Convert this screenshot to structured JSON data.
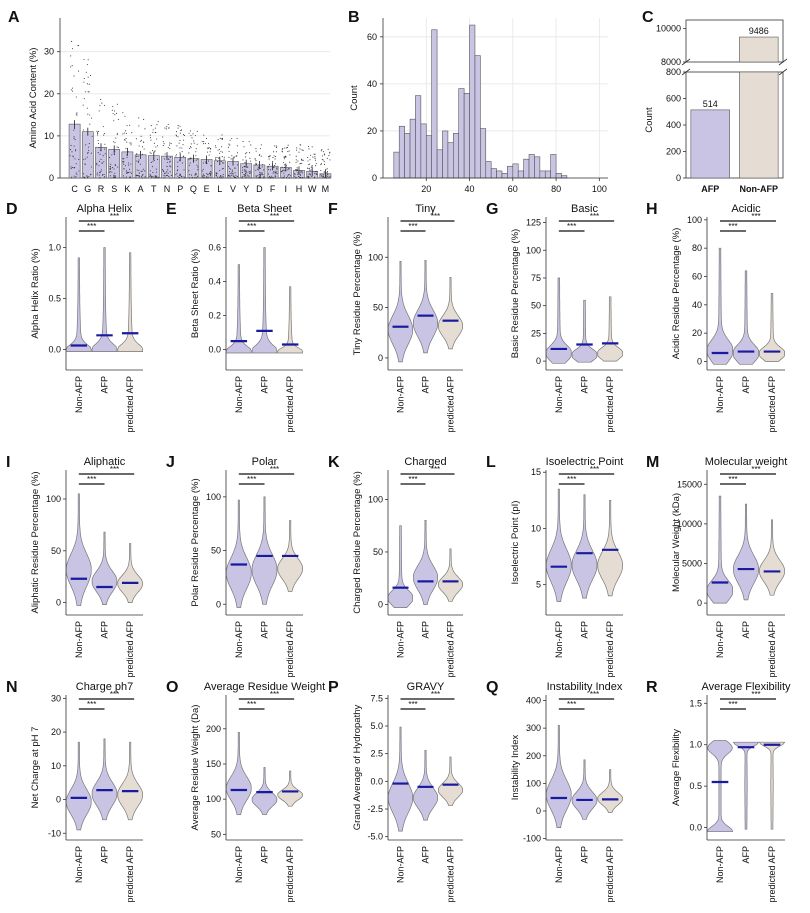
{
  "colors": {
    "afp": "#c9c4e4",
    "nonafp": "#e5ddd3",
    "mean": "#1a1aa0",
    "bar": "#c9c4e4",
    "outline": "#777777"
  },
  "chart_data": [
    {
      "id": "A",
      "panel_label": "A",
      "type": "bar",
      "title": "",
      "xlabel": "",
      "ylabel": "Amino Acid Content (%)",
      "ylim": [
        0,
        38
      ],
      "yticks": [
        0,
        10,
        20,
        30
      ],
      "categories": [
        "C",
        "G",
        "R",
        "S",
        "K",
        "A",
        "T",
        "N",
        "P",
        "Q",
        "E",
        "L",
        "V",
        "Y",
        "D",
        "F",
        "I",
        "H",
        "W",
        "M"
      ],
      "values": [
        12.8,
        11.0,
        7.3,
        6.8,
        6.2,
        5.5,
        5.3,
        5.2,
        4.9,
        4.6,
        4.4,
        4.1,
        3.9,
        3.4,
        3.1,
        2.8,
        2.5,
        1.8,
        1.6,
        1.0
      ],
      "grid": true
    },
    {
      "id": "B",
      "panel_label": "B",
      "type": "bar",
      "title": "",
      "xlabel": "",
      "ylabel": "Count",
      "xlim": [
        0,
        104
      ],
      "ylim": [
        0,
        68
      ],
      "xticks": [
        20,
        40,
        60,
        80,
        100
      ],
      "yticks": [
        0,
        20,
        40,
        60
      ],
      "bin_start": 5,
      "bin_width": 2.5,
      "values": [
        11,
        22,
        19,
        25,
        35,
        23,
        18,
        63,
        12,
        20,
        15,
        19,
        38,
        36,
        65,
        52,
        21,
        7,
        4,
        3,
        2,
        5,
        6,
        3,
        8,
        10,
        9,
        3,
        3,
        10,
        2,
        1
      ],
      "grid": true
    },
    {
      "id": "C",
      "panel_label": "C",
      "type": "bar",
      "title": "",
      "xlabel": "",
      "ylabel": "Count",
      "broken_axis": true,
      "ylim_top": [
        8000,
        10500
      ],
      "ylim_bottom": [
        0,
        800
      ],
      "yticks_top": [
        8000,
        10000
      ],
      "yticks_bottom": [
        0,
        200,
        400,
        600,
        800
      ],
      "categories": [
        "AFP",
        "Non-AFP"
      ],
      "values": [
        514,
        9486
      ],
      "data_labels": [
        "514",
        "9486"
      ]
    }
  ],
  "violin_panels": [
    {
      "id": "D",
      "panel_label": "D",
      "title": "Alpha Helix",
      "ylabel": "Alpha Helix Ratio (%)",
      "ylim": [
        -0.2,
        1.3
      ],
      "yticks": [
        0.0,
        0.5,
        1.0
      ],
      "tick_labels": [
        "0.0",
        "0.5",
        "1.0"
      ],
      "series": [
        {
          "name": "Non-AFP",
          "mean": 0.04,
          "min": -0.02,
          "max": 0.9,
          "shape": "bottom"
        },
        {
          "name": "AFP",
          "mean": 0.14,
          "min": -0.02,
          "max": 1.0,
          "shape": "bottom"
        },
        {
          "name": "predicted AFP",
          "mean": 0.16,
          "min": -0.02,
          "max": 0.95,
          "shape": "bottom"
        }
      ],
      "significance": [
        "***",
        "***"
      ]
    },
    {
      "id": "E",
      "panel_label": "E",
      "title": "Beta Sheet",
      "ylabel": "Beta Sheet Ratio (%)",
      "ylim": [
        -0.12,
        0.78
      ],
      "yticks": [
        0.0,
        0.2,
        0.4,
        0.6
      ],
      "tick_labels": [
        "0.0",
        "0.2",
        "0.4",
        "0.6"
      ],
      "series": [
        {
          "name": "Non-AFP",
          "mean": 0.05,
          "min": -0.02,
          "max": 0.5,
          "shape": "bottom"
        },
        {
          "name": "AFP",
          "mean": 0.11,
          "min": -0.02,
          "max": 0.6,
          "shape": "bottom"
        },
        {
          "name": "predicted AFP",
          "mean": 0.03,
          "min": -0.02,
          "max": 0.37,
          "shape": "bottom"
        }
      ],
      "significance": [
        "***",
        "***"
      ]
    },
    {
      "id": "F",
      "panel_label": "F",
      "title": "Tiny",
      "ylabel": "Tiny Residue Percentage (%)",
      "ylim": [
        -12,
        140
      ],
      "yticks": [
        0,
        50,
        100
      ],
      "tick_labels": [
        "0",
        "50",
        "100"
      ],
      "series": [
        {
          "name": "Non-AFP",
          "mean": 31,
          "min": -4,
          "max": 96,
          "shape": "mid"
        },
        {
          "name": "AFP",
          "mean": 42,
          "min": 5,
          "max": 97,
          "shape": "mid"
        },
        {
          "name": "predicted AFP",
          "mean": 37,
          "min": 9,
          "max": 80,
          "shape": "mid"
        }
      ],
      "significance": [
        "***",
        "***"
      ]
    },
    {
      "id": "G",
      "panel_label": "G",
      "title": "Basic",
      "ylabel": "Basic Residue Percentage (%)",
      "ylim": [
        -8,
        130
      ],
      "yticks": [
        0,
        25,
        50,
        75,
        100,
        125
      ],
      "tick_labels": [
        "0",
        "25",
        "50",
        "75",
        "100",
        "125"
      ],
      "series": [
        {
          "name": "Non-AFP",
          "mean": 11,
          "min": -2,
          "max": 75,
          "shape": "low"
        },
        {
          "name": "AFP",
          "mean": 15,
          "min": -1,
          "max": 55,
          "shape": "low"
        },
        {
          "name": "predicted AFP",
          "mean": 16,
          "min": 0,
          "max": 58,
          "shape": "low"
        }
      ],
      "significance": [
        "***",
        "***"
      ]
    },
    {
      "id": "H",
      "panel_label": "H",
      "title": "Acidic",
      "ylabel": "Acidic Residue Percentage (%)",
      "ylim": [
        -6,
        102
      ],
      "yticks": [
        0,
        20,
        40,
        60,
        80,
        100
      ],
      "tick_labels": [
        "0",
        "20",
        "40",
        "60",
        "80",
        "100"
      ],
      "series": [
        {
          "name": "Non-AFP",
          "mean": 6,
          "min": -2,
          "max": 80,
          "shape": "low"
        },
        {
          "name": "AFP",
          "mean": 7,
          "min": -2,
          "max": 64,
          "shape": "low"
        },
        {
          "name": "predicted AFP",
          "mean": 7,
          "min": 0,
          "max": 48,
          "shape": "low"
        }
      ],
      "significance": [
        "***",
        "***"
      ]
    },
    {
      "id": "I",
      "panel_label": "I",
      "title": "Aliphatic",
      "ylabel": "Aliphatic Residue Percentage (%)",
      "ylim": [
        -12,
        128
      ],
      "yticks": [
        0,
        50,
        100
      ],
      "tick_labels": [
        "0",
        "50",
        "100"
      ],
      "series": [
        {
          "name": "Non-AFP",
          "mean": 23,
          "min": -3,
          "max": 105,
          "shape": "mid"
        },
        {
          "name": "AFP",
          "mean": 15,
          "min": -2,
          "max": 68,
          "shape": "mid"
        },
        {
          "name": "predicted AFP",
          "mean": 19,
          "min": 0,
          "max": 57,
          "shape": "mid"
        }
      ],
      "significance": [
        "***",
        "***"
      ]
    },
    {
      "id": "J",
      "panel_label": "J",
      "title": "Polar",
      "ylabel": "Polar Residue Percentage (%)",
      "ylim": [
        -10,
        125
      ],
      "yticks": [
        0,
        50,
        100
      ],
      "tick_labels": [
        "0",
        "50",
        "100"
      ],
      "series": [
        {
          "name": "Non-AFP",
          "mean": 37,
          "min": -3,
          "max": 97,
          "shape": "mid"
        },
        {
          "name": "AFP",
          "mean": 45,
          "min": 0,
          "max": 100,
          "shape": "mid"
        },
        {
          "name": "predicted AFP",
          "mean": 45,
          "min": 12,
          "max": 78,
          "shape": "mid"
        }
      ],
      "significance": [
        "***",
        "***"
      ]
    },
    {
      "id": "K",
      "panel_label": "K",
      "title": "Charged",
      "ylabel": "Charged Residue Percentage (%)",
      "ylim": [
        -10,
        128
      ],
      "yticks": [
        0,
        50,
        100
      ],
      "tick_labels": [
        "0",
        "50",
        "100"
      ],
      "series": [
        {
          "name": "Non-AFP",
          "mean": 16,
          "min": -3,
          "max": 75,
          "shape": "low"
        },
        {
          "name": "AFP",
          "mean": 22,
          "min": 0,
          "max": 80,
          "shape": "mid"
        },
        {
          "name": "predicted AFP",
          "mean": 22,
          "min": 3,
          "max": 53,
          "shape": "mid"
        }
      ],
      "significance": [
        "***",
        "***"
      ]
    },
    {
      "id": "L",
      "panel_label": "L",
      "title": "Isoelectric Point",
      "ylabel": "Isoelectric Point (pI)",
      "ylim": [
        2.3,
        15.2
      ],
      "yticks": [
        5,
        10,
        15
      ],
      "tick_labels": [
        "5",
        "10",
        "15"
      ],
      "series": [
        {
          "name": "Non-AFP",
          "mean": 6.6,
          "min": 3.5,
          "max": 13.5,
          "shape": "mid"
        },
        {
          "name": "AFP",
          "mean": 7.8,
          "min": 3.8,
          "max": 13.0,
          "shape": "mid"
        },
        {
          "name": "predicted AFP",
          "mean": 8.1,
          "min": 4.0,
          "max": 12.5,
          "shape": "mid"
        }
      ],
      "significance": [
        "***",
        "***"
      ]
    },
    {
      "id": "M",
      "panel_label": "M",
      "title": "Molecular weight",
      "ylabel": "Molecular Weight (kDa)",
      "ylim": [
        -1500,
        16800
      ],
      "yticks": [
        0,
        5000,
        10000,
        15000
      ],
      "tick_labels": [
        "0",
        "5000",
        "10000",
        "15000"
      ],
      "series": [
        {
          "name": "Non-AFP",
          "mean": 2600,
          "min": 0,
          "max": 13500,
          "shape": "low"
        },
        {
          "name": "AFP",
          "mean": 4300,
          "min": 400,
          "max": 12500,
          "shape": "mid"
        },
        {
          "name": "predicted AFP",
          "mean": 4000,
          "min": 1000,
          "max": 10500,
          "shape": "mid"
        }
      ],
      "significance": [
        "***",
        "***"
      ]
    },
    {
      "id": "N",
      "panel_label": "N",
      "title": "Charge ph7",
      "ylabel": "Net Charge at pH 7",
      "ylim": [
        -12,
        31
      ],
      "yticks": [
        -10,
        0,
        10,
        20,
        30
      ],
      "tick_labels": [
        "-10",
        "0",
        "10",
        "20",
        "30"
      ],
      "series": [
        {
          "name": "Non-AFP",
          "mean": 0.5,
          "min": -9,
          "max": 17,
          "shape": "mid"
        },
        {
          "name": "AFP",
          "mean": 2.8,
          "min": -6,
          "max": 18,
          "shape": "mid"
        },
        {
          "name": "predicted AFP",
          "mean": 2.5,
          "min": -6,
          "max": 17,
          "shape": "mid"
        }
      ],
      "significance": [
        "***",
        "***"
      ]
    },
    {
      "id": "O",
      "panel_label": "O",
      "title": "Average Residue Weight",
      "ylabel": "Average Residue Weight (Da)",
      "ylim": [
        42,
        248
      ],
      "yticks": [
        50,
        100,
        150,
        200
      ],
      "tick_labels": [
        "50",
        "100",
        "150",
        "200"
      ],
      "series": [
        {
          "name": "Non-AFP",
          "mean": 113,
          "min": 78,
          "max": 195,
          "shape": "mid"
        },
        {
          "name": "AFP",
          "mean": 110,
          "min": 78,
          "max": 145,
          "shape": "mid"
        },
        {
          "name": "predicted AFP",
          "mean": 111,
          "min": 90,
          "max": 140,
          "shape": "mid"
        }
      ],
      "significance": [
        "***",
        "***"
      ]
    },
    {
      "id": "P",
      "panel_label": "P",
      "title": "GRAVY",
      "ylabel": "Grand Average of Hydropathy",
      "ylim": [
        -5.3,
        7.8
      ],
      "yticks": [
        -5.0,
        -2.5,
        0.0,
        2.5,
        5.0,
        7.5
      ],
      "tick_labels": [
        "-5.0",
        "-2.5",
        "0.0",
        "2.5",
        "5.0",
        "7.5"
      ],
      "series": [
        {
          "name": "Non-AFP",
          "mean": -0.2,
          "min": -4.5,
          "max": 4.9,
          "shape": "mid"
        },
        {
          "name": "AFP",
          "mean": -0.5,
          "min": -3.5,
          "max": 2.8,
          "shape": "mid"
        },
        {
          "name": "predicted AFP",
          "mean": -0.3,
          "min": -2.2,
          "max": 2.2,
          "shape": "mid"
        }
      ],
      "significance": [
        "***",
        "***"
      ]
    },
    {
      "id": "Q",
      "panel_label": "Q",
      "title": "Instability Index",
      "ylabel": "Instability Index",
      "ylim": [
        -105,
        420
      ],
      "yticks": [
        -100,
        0,
        100,
        200,
        300,
        400
      ],
      "tick_labels": [
        "-100",
        "0",
        "100",
        "200",
        "300",
        "400"
      ],
      "series": [
        {
          "name": "Non-AFP",
          "mean": 47,
          "min": -60,
          "max": 310,
          "shape": "mid"
        },
        {
          "name": "AFP",
          "mean": 40,
          "min": -30,
          "max": 185,
          "shape": "mid"
        },
        {
          "name": "predicted AFP",
          "mean": 42,
          "min": -5,
          "max": 150,
          "shape": "mid"
        }
      ],
      "significance": [
        "***",
        "***"
      ]
    },
    {
      "id": "R",
      "panel_label": "R",
      "title": "Average Flexibility",
      "ylabel": "Average Flexibility",
      "ylim": [
        -0.15,
        1.6
      ],
      "yticks": [
        0.0,
        0.5,
        1.0,
        1.5
      ],
      "tick_labels": [
        "0.0",
        "0.5",
        "1.0",
        "1.5"
      ],
      "series": [
        {
          "name": "Non-AFP",
          "mean": 0.55,
          "min": -0.05,
          "max": 1.05,
          "shape": "bimodal"
        },
        {
          "name": "AFP",
          "mean": 0.97,
          "min": -0.02,
          "max": 1.03,
          "shape": "top"
        },
        {
          "name": "predicted AFP",
          "mean": 1.0,
          "min": -0.02,
          "max": 1.03,
          "shape": "top"
        }
      ],
      "significance": [
        "***",
        "***"
      ]
    }
  ]
}
